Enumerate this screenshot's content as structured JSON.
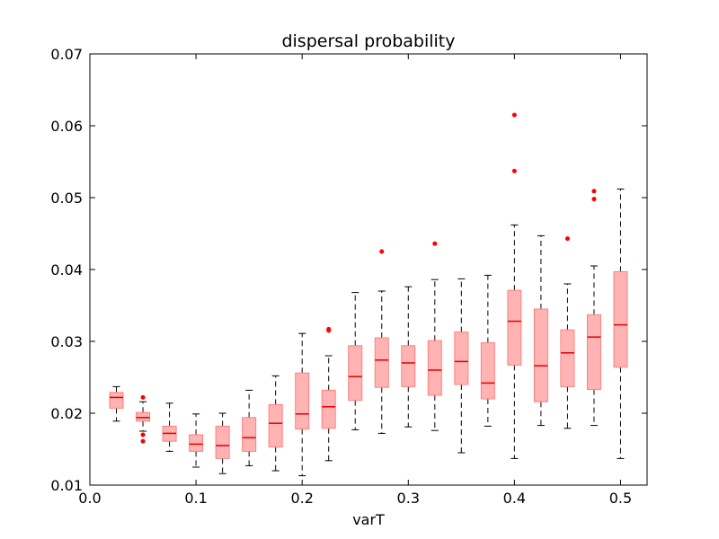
{
  "chart_data": {
    "type": "boxplot",
    "title": "dispersal probability",
    "xlabel": "varT",
    "ylabel": "",
    "xlim": [
      0.0,
      0.525
    ],
    "ylim": [
      0.01,
      0.07
    ],
    "xticks": [
      0.0,
      0.1,
      0.2,
      0.3,
      0.4,
      0.5
    ],
    "xtick_labels": [
      "0.0",
      "0.1",
      "0.2",
      "0.3",
      "0.4",
      "0.5"
    ],
    "yticks": [
      0.01,
      0.02,
      0.03,
      0.04,
      0.05,
      0.06,
      0.07
    ],
    "ytick_labels": [
      "0.01",
      "0.02",
      "0.03",
      "0.04",
      "0.05",
      "0.06",
      "0.07"
    ],
    "grid": false,
    "box_color": "#ffb3b3",
    "box_edge_color": "#ff8080",
    "median_color": "#e00000",
    "whisker_color": "#000000",
    "flier_color": "#ff0000",
    "boxes": [
      {
        "x": 0.025,
        "whislo": 0.0189,
        "q1": 0.0207,
        "median": 0.0222,
        "q3": 0.0229,
        "whishi": 0.0237,
        "fliers": []
      },
      {
        "x": 0.05,
        "whislo": 0.0175,
        "q1": 0.0189,
        "median": 0.0194,
        "q3": 0.0201,
        "whishi": 0.0216,
        "fliers": [
          0.0222,
          0.017,
          0.0161
        ]
      },
      {
        "x": 0.075,
        "whislo": 0.0147,
        "q1": 0.0161,
        "median": 0.0172,
        "q3": 0.0182,
        "whishi": 0.0214,
        "fliers": []
      },
      {
        "x": 0.1,
        "whislo": 0.0125,
        "q1": 0.0147,
        "median": 0.0157,
        "q3": 0.017,
        "whishi": 0.0199,
        "fliers": []
      },
      {
        "x": 0.125,
        "whislo": 0.0116,
        "q1": 0.0137,
        "median": 0.0155,
        "q3": 0.0182,
        "whishi": 0.02,
        "fliers": []
      },
      {
        "x": 0.15,
        "whislo": 0.0127,
        "q1": 0.0147,
        "median": 0.0166,
        "q3": 0.0194,
        "whishi": 0.0232,
        "fliers": []
      },
      {
        "x": 0.175,
        "whislo": 0.012,
        "q1": 0.0153,
        "median": 0.0186,
        "q3": 0.0212,
        "whishi": 0.0252,
        "fliers": []
      },
      {
        "x": 0.2,
        "whislo": 0.0113,
        "q1": 0.0178,
        "median": 0.0199,
        "q3": 0.0256,
        "whishi": 0.0311,
        "fliers": []
      },
      {
        "x": 0.225,
        "whislo": 0.0134,
        "q1": 0.0179,
        "median": 0.0209,
        "q3": 0.0232,
        "whishi": 0.028,
        "fliers": [
          0.0317,
          0.0315
        ]
      },
      {
        "x": 0.25,
        "whislo": 0.0177,
        "q1": 0.0218,
        "median": 0.0251,
        "q3": 0.0294,
        "whishi": 0.0368,
        "fliers": []
      },
      {
        "x": 0.275,
        "whislo": 0.0172,
        "q1": 0.0236,
        "median": 0.0274,
        "q3": 0.0305,
        "whishi": 0.037,
        "fliers": [
          0.0425
        ]
      },
      {
        "x": 0.3,
        "whislo": 0.0181,
        "q1": 0.0237,
        "median": 0.027,
        "q3": 0.0294,
        "whishi": 0.0376,
        "fliers": []
      },
      {
        "x": 0.325,
        "whislo": 0.0176,
        "q1": 0.0225,
        "median": 0.026,
        "q3": 0.0301,
        "whishi": 0.0386,
        "fliers": [
          0.0436
        ]
      },
      {
        "x": 0.35,
        "whislo": 0.0145,
        "q1": 0.024,
        "median": 0.0272,
        "q3": 0.0313,
        "whishi": 0.0387,
        "fliers": []
      },
      {
        "x": 0.375,
        "whislo": 0.0182,
        "q1": 0.022,
        "median": 0.0242,
        "q3": 0.0298,
        "whishi": 0.0392,
        "fliers": []
      },
      {
        "x": 0.4,
        "whislo": 0.0137,
        "q1": 0.0267,
        "median": 0.0328,
        "q3": 0.0371,
        "whishi": 0.0462,
        "fliers": [
          0.0615,
          0.0537
        ]
      },
      {
        "x": 0.425,
        "whislo": 0.0183,
        "q1": 0.0216,
        "median": 0.0266,
        "q3": 0.0345,
        "whishi": 0.0447,
        "fliers": []
      },
      {
        "x": 0.45,
        "whislo": 0.0179,
        "q1": 0.0237,
        "median": 0.0284,
        "q3": 0.0316,
        "whishi": 0.038,
        "fliers": [
          0.0443
        ]
      },
      {
        "x": 0.475,
        "whislo": 0.0183,
        "q1": 0.0233,
        "median": 0.0306,
        "q3": 0.0337,
        "whishi": 0.0405,
        "fliers": [
          0.0509,
          0.0498
        ]
      },
      {
        "x": 0.5,
        "whislo": 0.0137,
        "q1": 0.0264,
        "median": 0.0323,
        "q3": 0.0397,
        "whishi": 0.0512,
        "fliers": []
      }
    ]
  }
}
